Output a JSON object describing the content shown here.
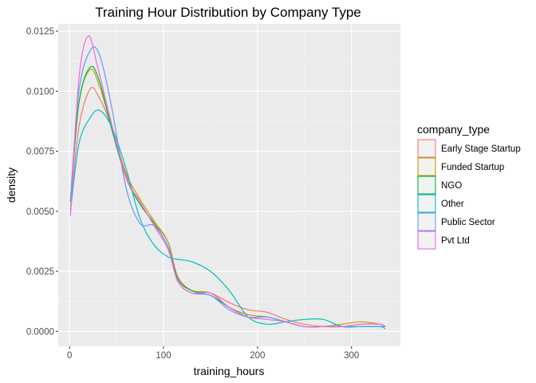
{
  "chart_data": {
    "type": "line",
    "subtype": "density",
    "title": "Training Hour Distribution by Company Type",
    "xlabel": "training_hours",
    "ylabel": "density",
    "xlim": [
      -12,
      352
    ],
    "ylim": [
      -0.00062,
      0.0128
    ],
    "x_ticks": [
      0,
      100,
      200,
      300
    ],
    "y_ticks": [
      0.0,
      0.0025,
      0.005,
      0.0075,
      0.01,
      0.0125
    ],
    "y_tick_labels": [
      "0.0000",
      "0.0025",
      "0.0050",
      "0.0075",
      "0.0100",
      "0.0125"
    ],
    "grid": true,
    "legend": {
      "title": "company_type",
      "position": "right"
    },
    "series": [
      {
        "name": "Early Stage Startup",
        "color": "#F8766D",
        "x": [
          1,
          10,
          22,
          32,
          45,
          60,
          75,
          90,
          105,
          115,
          130,
          150,
          170,
          190,
          210,
          230,
          250,
          270,
          290,
          310,
          330,
          336
        ],
        "y": [
          0.0051,
          0.0085,
          0.0101,
          0.0097,
          0.0085,
          0.0065,
          0.0053,
          0.0045,
          0.0037,
          0.0023,
          0.0017,
          0.0016,
          0.0012,
          0.0009,
          0.0008,
          0.0005,
          0.0003,
          0.0002,
          0.0002,
          0.0003,
          0.0003,
          0.0002
        ]
      },
      {
        "name": "Funded Startup",
        "color": "#B79F00",
        "x": [
          1,
          10,
          22,
          32,
          45,
          60,
          75,
          90,
          105,
          115,
          130,
          150,
          170,
          190,
          210,
          230,
          250,
          270,
          290,
          310,
          330,
          336
        ],
        "y": [
          0.0054,
          0.0095,
          0.0109,
          0.0102,
          0.0085,
          0.0066,
          0.0055,
          0.0046,
          0.0037,
          0.0022,
          0.0017,
          0.0016,
          0.001,
          0.0007,
          0.0006,
          0.0004,
          0.0002,
          0.0002,
          0.0003,
          0.0004,
          0.0003,
          0.0002
        ]
      },
      {
        "name": "NGO",
        "color": "#00BA38",
        "x": [
          1,
          10,
          22,
          32,
          45,
          60,
          75,
          90,
          105,
          115,
          130,
          150,
          170,
          190,
          210,
          230,
          250,
          270,
          290,
          310,
          330,
          336
        ],
        "y": [
          0.0054,
          0.0095,
          0.011,
          0.0104,
          0.0084,
          0.0064,
          0.0053,
          0.0045,
          0.0035,
          0.0022,
          0.0017,
          0.0015,
          0.001,
          0.0006,
          0.0006,
          0.0004,
          0.0002,
          0.0002,
          0.0002,
          0.0002,
          0.0002,
          0.0002
        ]
      },
      {
        "name": "Other",
        "color": "#00BFC4",
        "x": [
          1,
          10,
          22,
          32,
          45,
          60,
          75,
          90,
          105,
          115,
          130,
          150,
          170,
          190,
          210,
          230,
          250,
          270,
          290,
          310,
          330,
          336
        ],
        "y": [
          0.005,
          0.0078,
          0.0089,
          0.0092,
          0.0085,
          0.0068,
          0.0047,
          0.0036,
          0.0031,
          0.003,
          0.0029,
          0.0025,
          0.0017,
          0.0006,
          0.0003,
          0.0004,
          0.0005,
          0.0005,
          0.0002,
          0.0002,
          0.0002,
          0.0002
        ]
      },
      {
        "name": "Public Sector",
        "color": "#619CFF",
        "x": [
          1,
          10,
          22,
          32,
          45,
          60,
          75,
          90,
          105,
          115,
          130,
          150,
          170,
          190,
          210,
          230,
          250,
          270,
          290,
          310,
          330,
          336
        ],
        "y": [
          0.0055,
          0.01,
          0.0117,
          0.0115,
          0.0093,
          0.006,
          0.0045,
          0.0044,
          0.0035,
          0.0021,
          0.0016,
          0.0015,
          0.0009,
          0.0006,
          0.0006,
          0.0004,
          0.0002,
          0.0002,
          0.0002,
          0.0002,
          0.0002,
          0.0001
        ]
      },
      {
        "name": "Pvt Ltd",
        "color": "#F564E3",
        "x": [
          1,
          10,
          20,
          30,
          45,
          60,
          75,
          90,
          105,
          115,
          130,
          150,
          170,
          190,
          210,
          230,
          250,
          270,
          290,
          310,
          330,
          336
        ],
        "y": [
          0.0048,
          0.0105,
          0.0123,
          0.011,
          0.0086,
          0.0064,
          0.0054,
          0.0044,
          0.0034,
          0.0021,
          0.0016,
          0.0016,
          0.001,
          0.0006,
          0.0005,
          0.0004,
          0.0002,
          0.0002,
          0.0002,
          0.0003,
          0.0003,
          0.0002
        ]
      }
    ]
  }
}
